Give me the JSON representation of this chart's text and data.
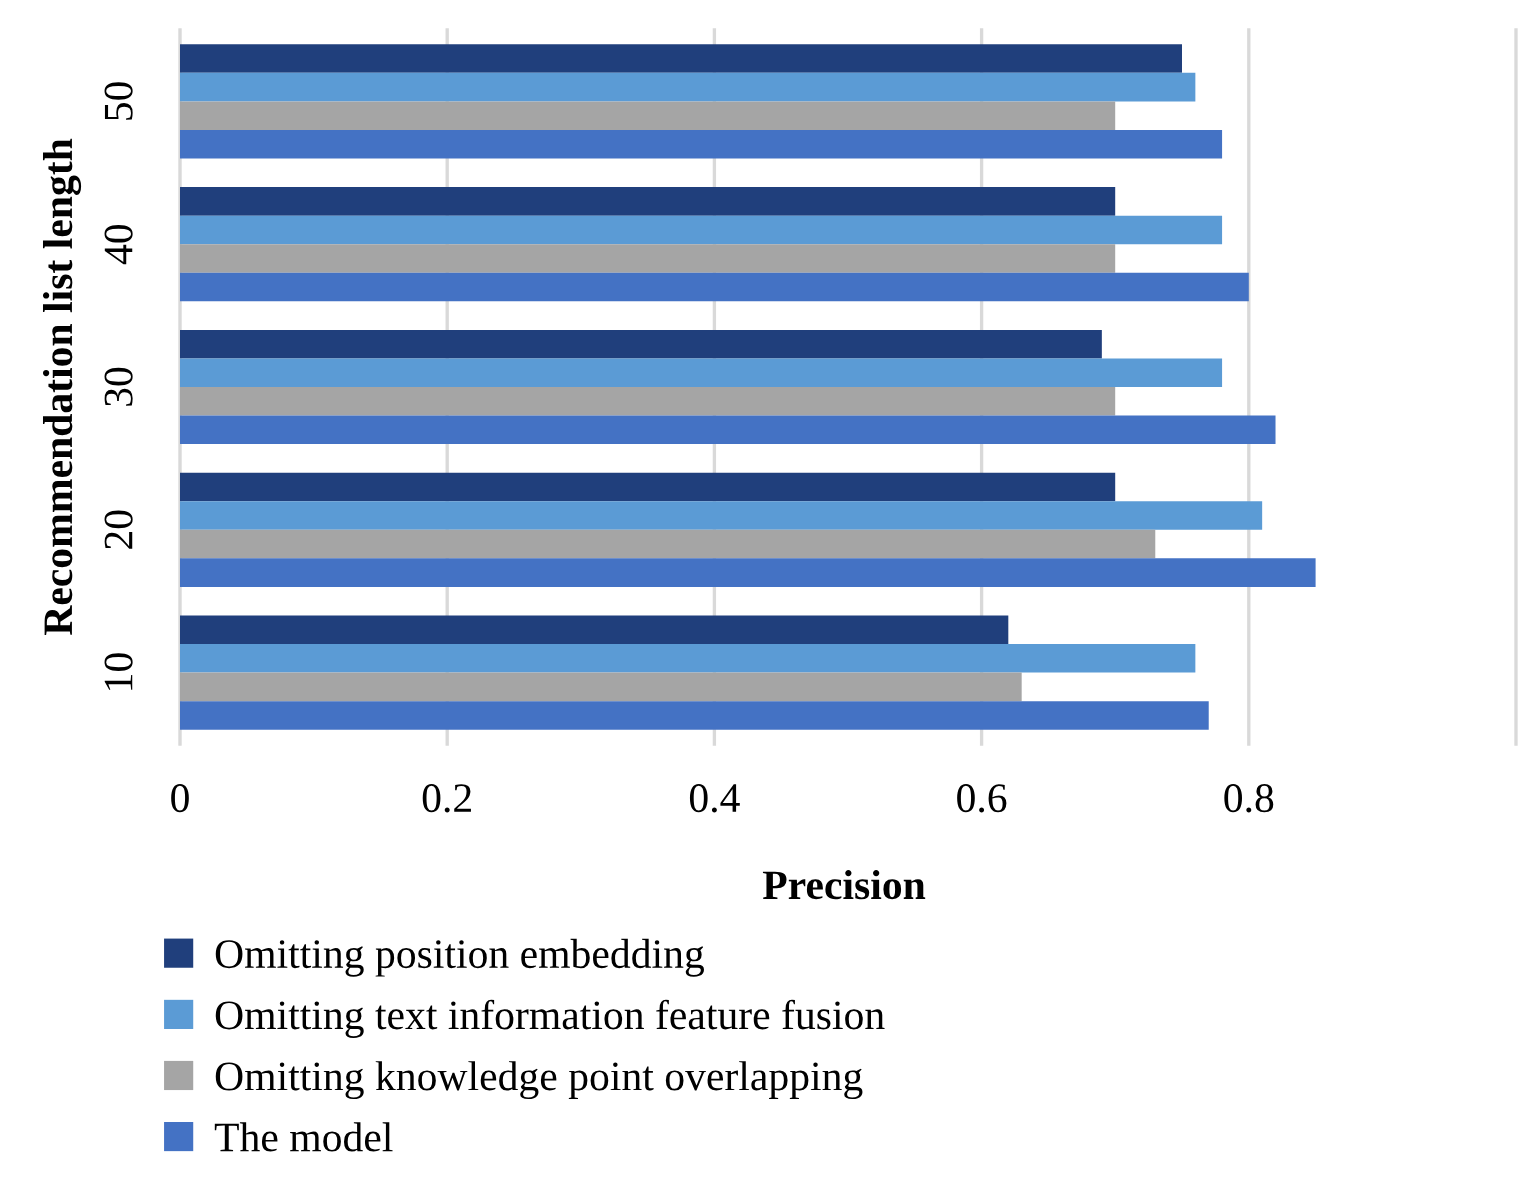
{
  "chart_data": {
    "type": "bar",
    "orientation": "horizontal",
    "xlabel": "Precision",
    "ylabel": "Recommendation list length",
    "categories": [
      "50",
      "40",
      "30",
      "20",
      "10"
    ],
    "series": [
      {
        "name": "Omitting position embedding",
        "color": "#203f7c",
        "values": [
          0.75,
          0.7,
          0.69,
          0.7,
          0.62
        ]
      },
      {
        "name": "Omitting text information feature fusion",
        "color": "#5b9bd5",
        "values": [
          0.76,
          0.78,
          0.78,
          0.81,
          0.76
        ]
      },
      {
        "name": "Omitting knowledge point overlapping",
        "color": "#a5a5a5",
        "values": [
          0.7,
          0.7,
          0.7,
          0.73,
          0.63
        ]
      },
      {
        "name": "The model",
        "color": "#4472c4",
        "values": [
          0.78,
          0.8,
          0.82,
          0.85,
          0.77
        ]
      }
    ],
    "xlim": [
      0,
      1
    ],
    "xticks": [
      0,
      0.2,
      0.4,
      0.6,
      0.8,
      {
        "value": 1,
        "label": null
      }
    ],
    "grid": "x",
    "legend": "bottom"
  }
}
